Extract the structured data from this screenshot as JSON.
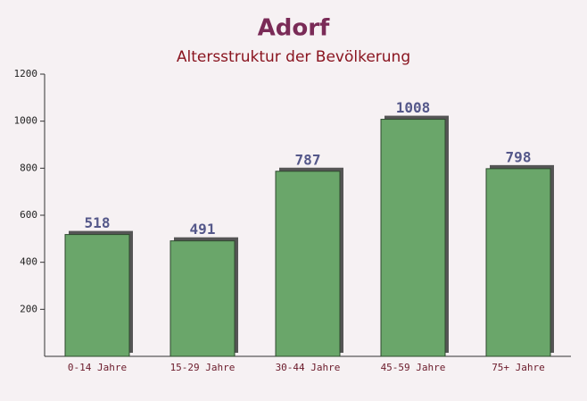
{
  "chart_data": {
    "type": "bar",
    "title": "Adorf",
    "subtitle": "Altersstruktur der Bevölkerung",
    "categories": [
      "0-14 Jahre",
      "15-29 Jahre",
      "30-44 Jahre",
      "45-59 Jahre",
      "75+ Jahre"
    ],
    "values": [
      518,
      491,
      787,
      1008,
      798
    ],
    "color": "#6aa66a",
    "ylim": [
      0,
      1200
    ],
    "yticks": [
      200,
      400,
      600,
      800,
      1000,
      1200
    ],
    "grid": false
  }
}
